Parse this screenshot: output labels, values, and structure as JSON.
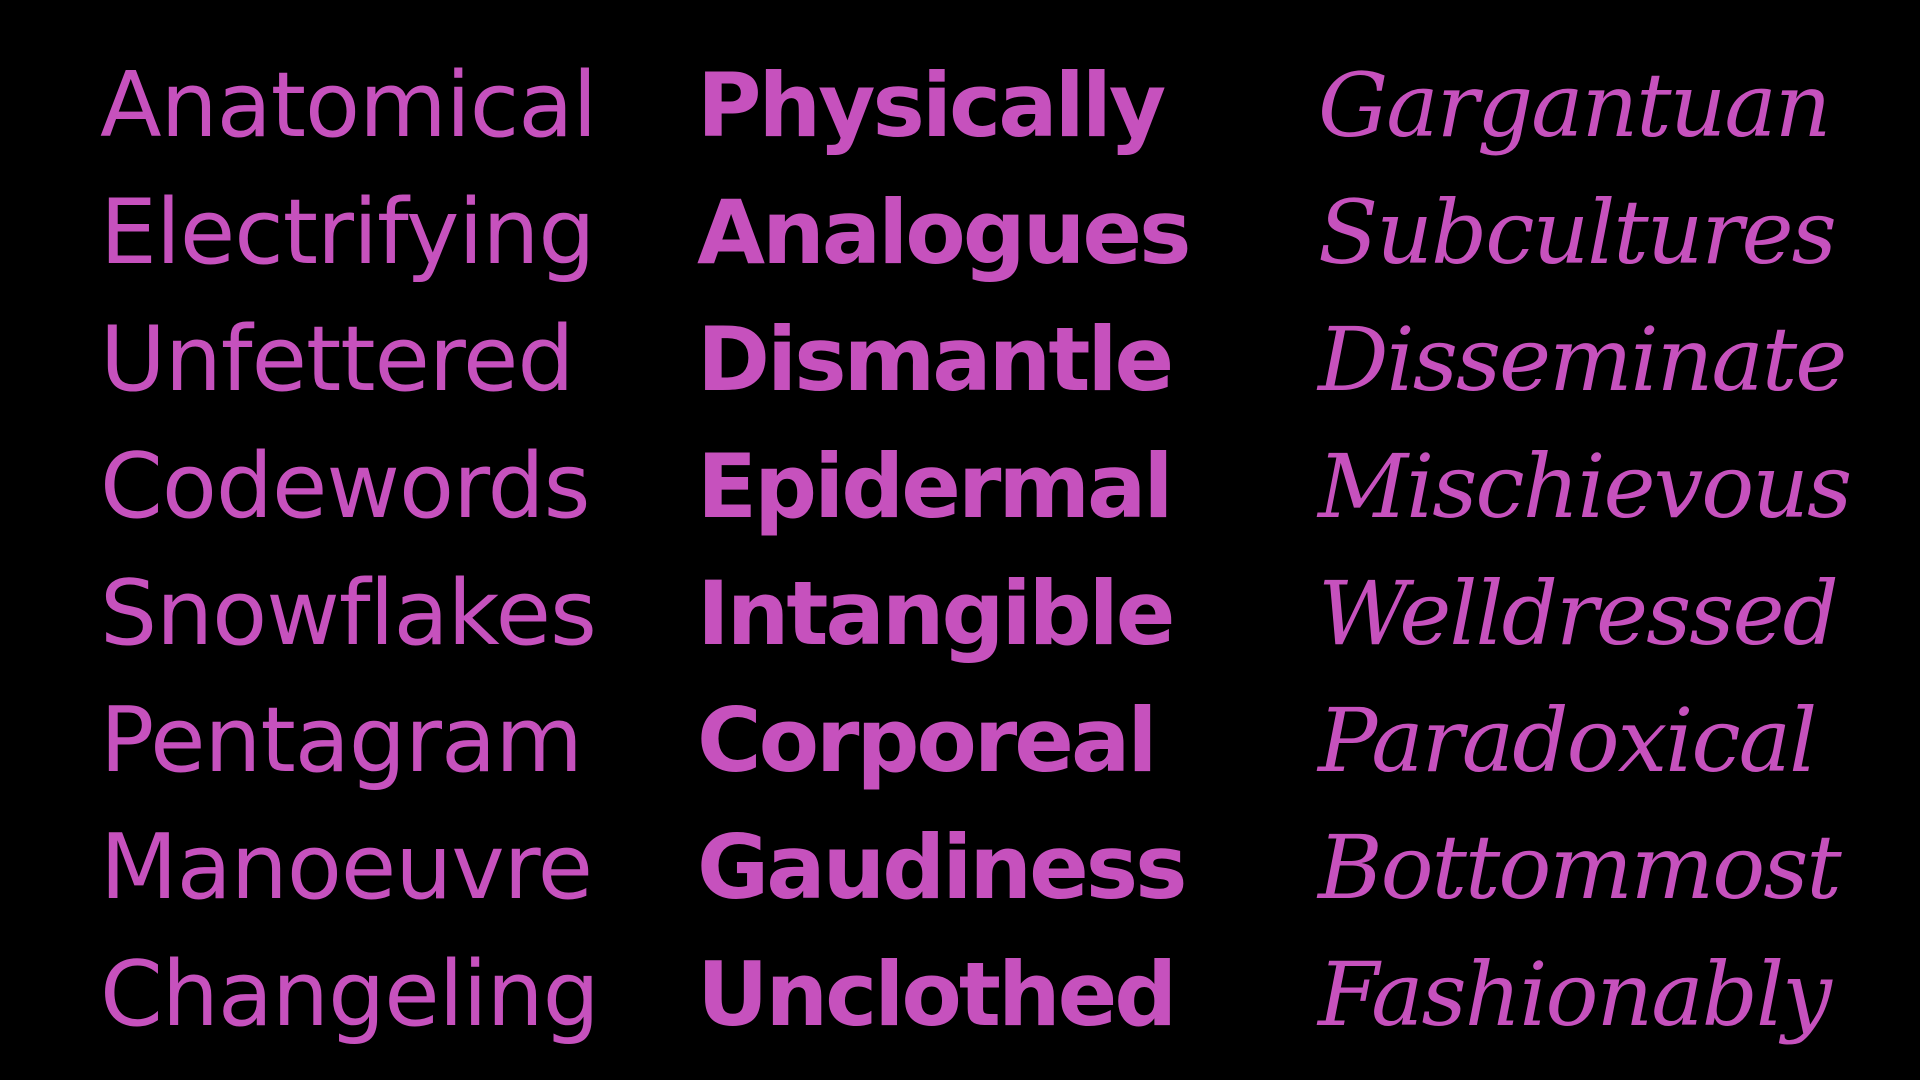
{
  "theme": {
    "background": "#000000",
    "text_color": "#c651bd"
  },
  "columns": {
    "regular": [
      "Anatomical",
      "Electrifying",
      "Unfettered",
      "Codewords",
      "Snowflakes",
      "Pentagram",
      "Manoeuvre",
      "Changeling"
    ],
    "bold": [
      "Physically",
      "Analogues",
      "Dismantle",
      "Epidermal",
      "Intangible",
      "Corporeal",
      "Gaudiness",
      "Unclothed"
    ],
    "italic": [
      "Gargantuan",
      "Subcultures",
      "Disseminate",
      "Mischievous",
      "Welldressed",
      "Paradoxical",
      "Bottommost",
      "Fashionably"
    ]
  }
}
